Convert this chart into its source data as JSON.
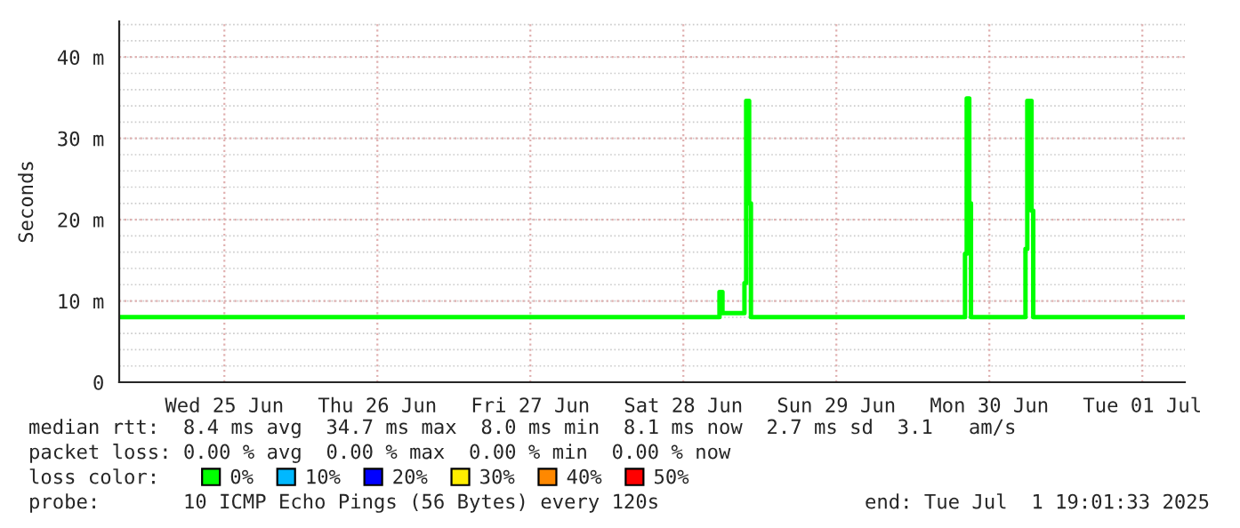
{
  "chart_data": {
    "type": "step",
    "ylabel": "Seconds",
    "x": [
      "2025-06-24T19:30",
      "2025-06-28T17:40",
      "2025-06-28T18:08",
      "2025-06-28T21:35",
      "2025-06-28T21:51",
      "2025-06-28T22:19",
      "2025-06-28T22:36",
      "2025-06-30T08:11",
      "2025-06-30T08:27",
      "2025-06-30T08:51",
      "2025-06-30T09:07",
      "2025-06-30T17:40",
      "2025-06-30T17:57",
      "2025-06-30T18:37",
      "2025-06-30T18:53",
      "2025-07-01T18:40"
    ],
    "series": [
      {
        "name": "0%",
        "color": "#00ff00",
        "values": [
          8.0,
          11.1,
          8.5,
          12.2,
          34.6,
          22,
          8.0,
          15.8,
          34.9,
          22,
          8.0,
          16.4,
          34.6,
          21.1,
          8.0,
          8.0
        ]
      },
      {
        "name": "10%",
        "color": "#00b8ff",
        "values": [
          null,
          null,
          null,
          null,
          null,
          null,
          null,
          null,
          null,
          null,
          null,
          null,
          null,
          null,
          null,
          null
        ]
      },
      {
        "name": "20%",
        "color": "#0000ff",
        "values": [
          null,
          null,
          null,
          null,
          null,
          null,
          null,
          null,
          null,
          null,
          null,
          null,
          null,
          null,
          null,
          null
        ]
      },
      {
        "name": "30%",
        "color": "#ffee00",
        "values": [
          null,
          null,
          null,
          null,
          null,
          null,
          null,
          null,
          null,
          null,
          null,
          null,
          null,
          null,
          null,
          null
        ]
      },
      {
        "name": "40%",
        "color": "#ff8800",
        "values": [
          null,
          null,
          null,
          null,
          null,
          null,
          null,
          null,
          null,
          null,
          null,
          null,
          null,
          null,
          null,
          null
        ]
      },
      {
        "name": "50%",
        "color": "#ff0000",
        "values": [
          null,
          null,
          null,
          null,
          null,
          null,
          null,
          null,
          null,
          null,
          null,
          null,
          null,
          null,
          null,
          null
        ]
      }
    ],
    "xlim": [
      "2025-06-24T19:30",
      "2025-07-01T18:40"
    ],
    "xticks": [
      {
        "value": "2025-06-25T12:00",
        "label": "Wed 25 Jun"
      },
      {
        "value": "2025-06-26T12:00",
        "label": "Thu 26 Jun"
      },
      {
        "value": "2025-06-27T12:00",
        "label": "Fri 27 Jun"
      },
      {
        "value": "2025-06-28T12:00",
        "label": "Sat 28 Jun"
      },
      {
        "value": "2025-06-29T12:00",
        "label": "Sun 29 Jun"
      },
      {
        "value": "2025-06-30T12:00",
        "label": "Mon 30 Jun"
      },
      {
        "value": "2025-07-01T12:00",
        "label": "Tue 01 Jul"
      }
    ],
    "ylim": [
      0,
      44.4
    ],
    "yticks": [
      0,
      {
        "value": 10,
        "label": "10 m"
      },
      {
        "value": 20,
        "label": "20 m"
      },
      {
        "value": 30,
        "label": "30 m"
      },
      {
        "value": 40,
        "label": "40 m"
      }
    ],
    "grid": true,
    "legend": "bottom",
    "annotations": [
      "median rtt:  8.4 ms avg  34.7 ms max  8.0 ms min  8.1 ms now  2.7 ms sd  3.1   am/s",
      "packet loss: 0.00 % avg  0.00 % max  0.00 % min  0.00 % now",
      "loss color:",
      "probe:       10 ICMP Echo Pings (56 Bytes) every 120s",
      "end: Tue Jul  1 19:01:33 2025"
    ]
  }
}
